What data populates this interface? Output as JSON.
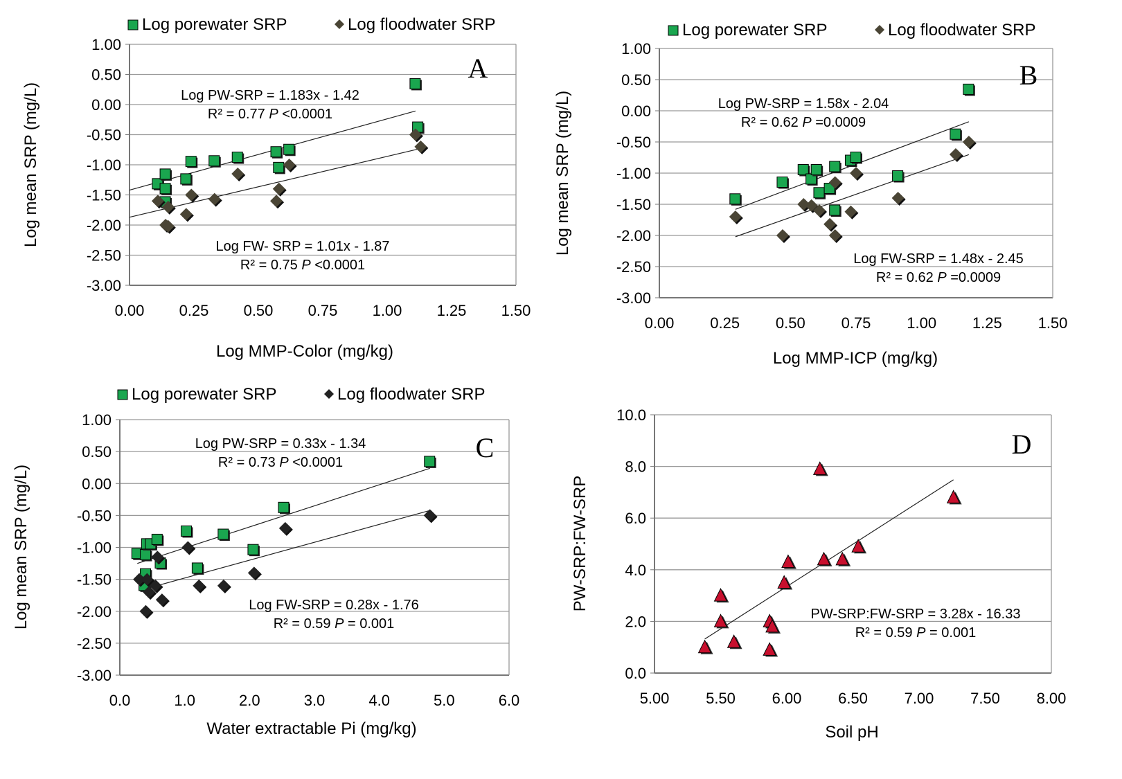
{
  "chart_data": [
    {
      "type": "scatter",
      "panel": "A",
      "xlabel": "Log MMP-Color  (mg/kg)",
      "ylabel": "Log mean SRP (mg/L)",
      "xlim": [
        0,
        1.5
      ],
      "ylim": [
        -3,
        1
      ],
      "xticks": [
        "0.00",
        "0.25",
        "0.50",
        "0.75",
        "1.00",
        "1.25",
        "1.50"
      ],
      "yticks": [
        "1.00",
        "0.50",
        "0.00",
        "-0.50",
        "-1.00",
        "-1.50",
        "-2.00",
        "-2.50",
        "-3.00"
      ],
      "legend": [
        "Log porewater SRP",
        "Log floodwater SRP"
      ],
      "series": [
        {
          "name": "Log porewater SRP",
          "x": [
            0.11,
            0.14,
            0.14,
            0.14,
            0.22,
            0.24,
            0.33,
            0.42,
            0.57,
            0.58,
            0.62,
            1.11,
            1.12
          ],
          "y": [
            -1.32,
            -1.16,
            -1.4,
            -1.62,
            -1.24,
            -0.95,
            -0.94,
            -0.88,
            -0.79,
            -1.05,
            -0.75,
            0.34,
            -0.38
          ]
        },
        {
          "name": "Log floodwater SRP",
          "x": [
            0.11,
            0.14,
            0.15,
            0.15,
            0.24,
            0.22,
            0.33,
            0.42,
            0.57,
            0.58,
            0.62,
            1.11,
            1.13
          ],
          "y": [
            -1.6,
            -2.0,
            -1.7,
            -2.02,
            -1.5,
            -1.82,
            -1.57,
            -1.15,
            -1.6,
            -1.4,
            -1.0,
            -0.5,
            -0.7
          ]
        }
      ],
      "trendlines": [
        {
          "slope": 1.183,
          "intercept": -1.42,
          "x": [
            0,
            1.11
          ]
        },
        {
          "slope": 1.01,
          "intercept": -1.87,
          "x": [
            0,
            1.13
          ]
        }
      ],
      "annotations": [
        "Log PW-SRP = 1.183x - 1.42",
        "R² = 0.77 P <0.0001",
        "Log FW- SRP = 1.01x - 1.87",
        "R² = 0.75 P <0.0001",
        "A"
      ]
    },
    {
      "type": "scatter",
      "panel": "B",
      "xlabel": "Log MMP-ICP (mg/kg)",
      "ylabel": "Log mean SRP (mg/L)",
      "xlim": [
        0,
        1.5
      ],
      "ylim": [
        -3,
        1
      ],
      "xticks": [
        "0.00",
        "0.25",
        "0.50",
        "0.75",
        "1.00",
        "1.25",
        "1.50"
      ],
      "yticks": [
        "1.00",
        "0.50",
        "0.00",
        "-0.50",
        "-1.00",
        "-1.50",
        "-2.00",
        "-2.50",
        "-3.00"
      ],
      "legend": [
        "Log porewater SRP",
        "Log floodwater SRP"
      ],
      "series": [
        {
          "name": "Log porewater SRP",
          "x": [
            0.29,
            0.47,
            0.55,
            0.58,
            0.6,
            0.61,
            0.65,
            0.67,
            0.67,
            0.73,
            0.75,
            0.91,
            1.13,
            1.18
          ],
          "y": [
            -1.42,
            -1.15,
            -0.95,
            -1.1,
            -0.95,
            -1.32,
            -1.25,
            -0.9,
            -1.6,
            -0.8,
            -0.75,
            -1.05,
            -0.38,
            0.34
          ]
        },
        {
          "name": "Log floodwater SRP",
          "x": [
            0.29,
            0.47,
            0.55,
            0.58,
            0.61,
            0.65,
            0.67,
            0.67,
            0.73,
            0.75,
            0.91,
            1.13,
            1.18
          ],
          "y": [
            -1.7,
            -2.0,
            -1.5,
            -1.52,
            -1.6,
            -1.82,
            -1.15,
            -2.0,
            -1.62,
            -1.0,
            -1.4,
            -0.7,
            -0.5
          ]
        }
      ],
      "trendlines": [
        {
          "slope": 1.58,
          "intercept": -2.04,
          "x": [
            0.29,
            1.18
          ]
        },
        {
          "slope": 1.48,
          "intercept": -2.45,
          "x": [
            0.29,
            1.18
          ]
        }
      ],
      "annotations": [
        "Log PW-SRP = 1.58x - 2.04",
        "R² = 0.62 P =0.0009",
        "Log FW-SRP = 1.48x - 2.45",
        "R² = 0.62 P =0.0009",
        "B"
      ]
    },
    {
      "type": "scatter",
      "panel": "C",
      "xlabel": "Water extractable Pi (mg/kg)",
      "ylabel": "Log mean SRP (mg/L)",
      "xlim": [
        0,
        6
      ],
      "ylim": [
        -3,
        1
      ],
      "xticks": [
        "0.0",
        "1.0",
        "2.0",
        "3.0",
        "4.0",
        "5.0",
        "6.0"
      ],
      "yticks": [
        "1.00",
        "0.50",
        "0.00",
        "-0.50",
        "-1.00",
        "-1.50",
        "-2.00",
        "-2.50",
        "-3.00"
      ],
      "legend": [
        "Log porewater SRP",
        "Log floodwater SRP"
      ],
      "series": [
        {
          "name": "Log porewater SRP",
          "x": [
            0.27,
            0.38,
            0.4,
            0.4,
            0.42,
            0.48,
            0.58,
            0.63,
            1.03,
            1.2,
            1.6,
            2.06,
            2.53,
            4.78
          ],
          "y": [
            -1.1,
            -1.6,
            -1.42,
            -1.12,
            -0.95,
            -0.95,
            -0.88,
            -1.25,
            -0.75,
            -1.33,
            -0.8,
            -1.04,
            -0.38,
            0.34
          ]
        },
        {
          "name": "Log floodwater SRP",
          "x": [
            0.3,
            0.4,
            0.42,
            0.45,
            0.55,
            0.58,
            0.65,
            1.05,
            1.22,
            1.6,
            2.07,
            2.55,
            4.78
          ],
          "y": [
            -1.5,
            -2.0,
            -1.5,
            -1.7,
            -1.6,
            -1.15,
            -1.82,
            -1.0,
            -1.6,
            -1.6,
            -1.4,
            -0.7,
            -0.5
          ]
        }
      ],
      "trendlines": [
        {
          "slope": 0.33,
          "intercept": -1.34,
          "x": [
            0.27,
            4.78
          ]
        },
        {
          "slope": 0.28,
          "intercept": -1.76,
          "x": [
            0.3,
            4.78
          ]
        }
      ],
      "annotations": [
        "Log PW-SRP = 0.33x - 1.34",
        "R² = 0.73 P <0.0001",
        "Log FW-SRP = 0.28x - 1.76",
        "R² = 0.59 P = 0.001",
        "C"
      ]
    },
    {
      "type": "scatter",
      "panel": "D",
      "xlabel": "Soil pH",
      "ylabel": "PW-SRP:FW-SRP",
      "xlim": [
        5,
        8
      ],
      "ylim": [
        0,
        10
      ],
      "xticks": [
        "5.00",
        "5.50",
        "6.00",
        "6.50",
        "7.00",
        "7.50",
        "8.00"
      ],
      "yticks": [
        "10.0",
        "8.0",
        "6.0",
        "4.0",
        "2.0",
        "0.0"
      ],
      "legend": [],
      "series": [
        {
          "name": "PW-SRP:FW-SRP",
          "x": [
            5.38,
            5.5,
            5.5,
            5.6,
            5.87,
            5.87,
            5.89,
            5.98,
            6.01,
            6.25,
            6.28,
            6.42,
            6.54,
            7.26
          ],
          "y": [
            1.0,
            3.0,
            2.0,
            1.2,
            2.0,
            0.9,
            1.8,
            3.5,
            4.3,
            7.9,
            4.4,
            4.4,
            4.9,
            6.8
          ]
        }
      ],
      "trendlines": [
        {
          "slope": 3.28,
          "intercept": -16.33,
          "x": [
            5.38,
            7.26
          ]
        }
      ],
      "annotations": [
        "PW-SRP:FW-SRP = 3.28x - 16.33",
        "R² = 0.59 P = 0.001",
        "D"
      ]
    }
  ],
  "colors": {
    "porewater": "#1aa64f",
    "floodwater": "#4a4535",
    "ratio": "#c8102e"
  }
}
